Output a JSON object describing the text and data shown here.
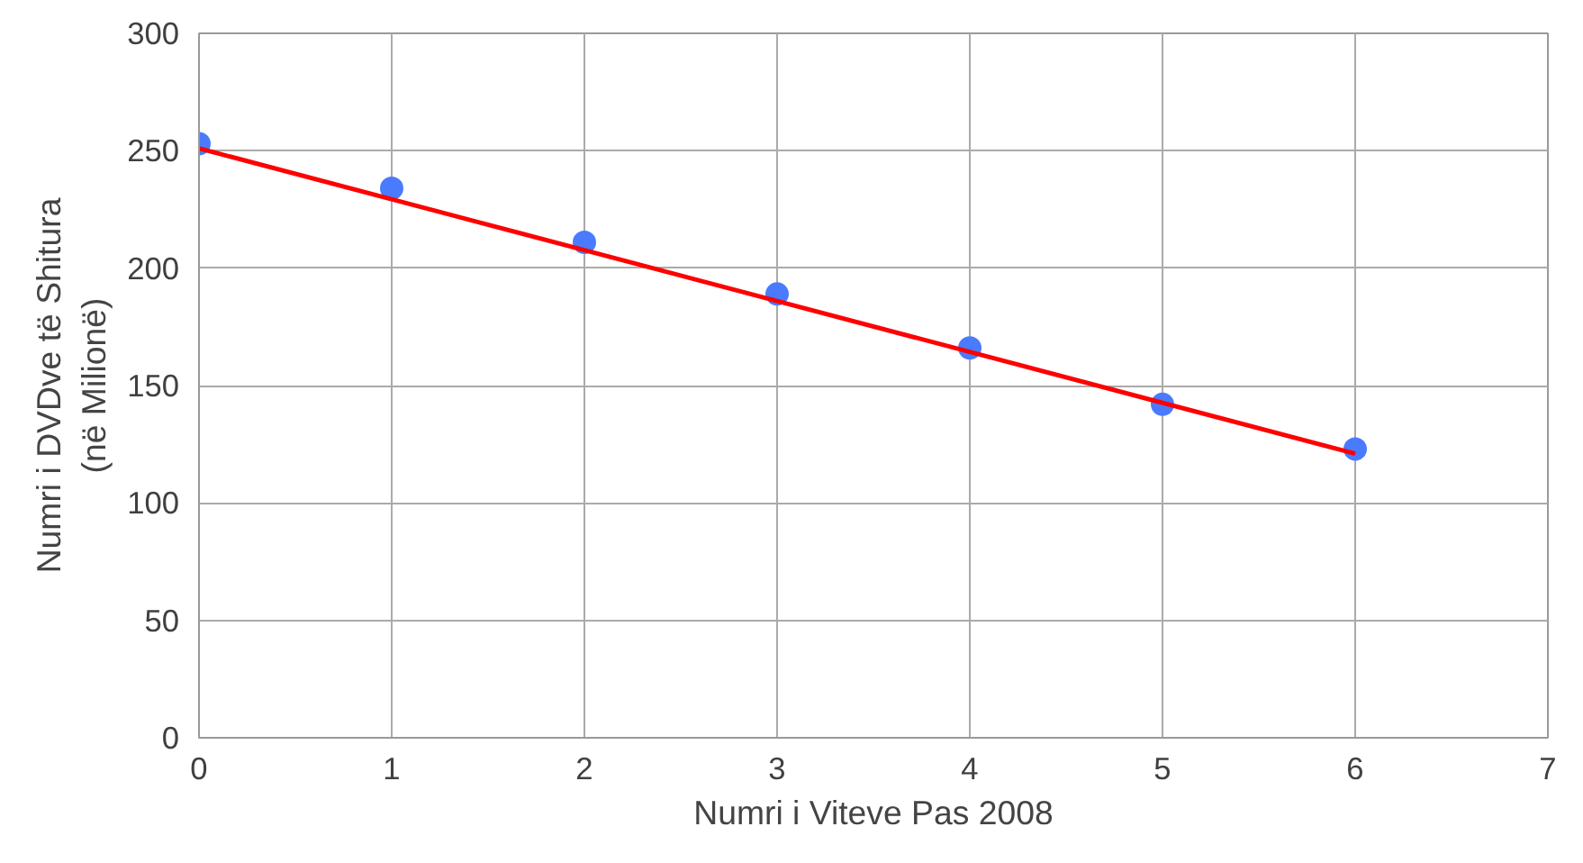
{
  "chart_data": {
    "type": "scatter",
    "xlabel": "Numri i Viteve Pas 2008",
    "ylabel": "Numri i DVDve të Shitura\n(në Milionë)",
    "xlim": [
      0,
      7
    ],
    "ylim": [
      0,
      300
    ],
    "xticks": [
      0,
      1,
      2,
      3,
      4,
      5,
      6,
      7
    ],
    "yticks": [
      0,
      50,
      100,
      150,
      200,
      250,
      300
    ],
    "grid": true,
    "series": [
      {
        "marker": "circle",
        "color": "#4a7bff",
        "x": [
          0,
          1,
          2,
          3,
          4,
          5,
          6
        ],
        "values": [
          253,
          234,
          211,
          189,
          166,
          142,
          123
        ]
      },
      {
        "type": "line",
        "color": "#ff0000",
        "x": [
          0,
          6
        ],
        "values": [
          251,
          121
        ],
        "line_style": "solid"
      }
    ]
  }
}
